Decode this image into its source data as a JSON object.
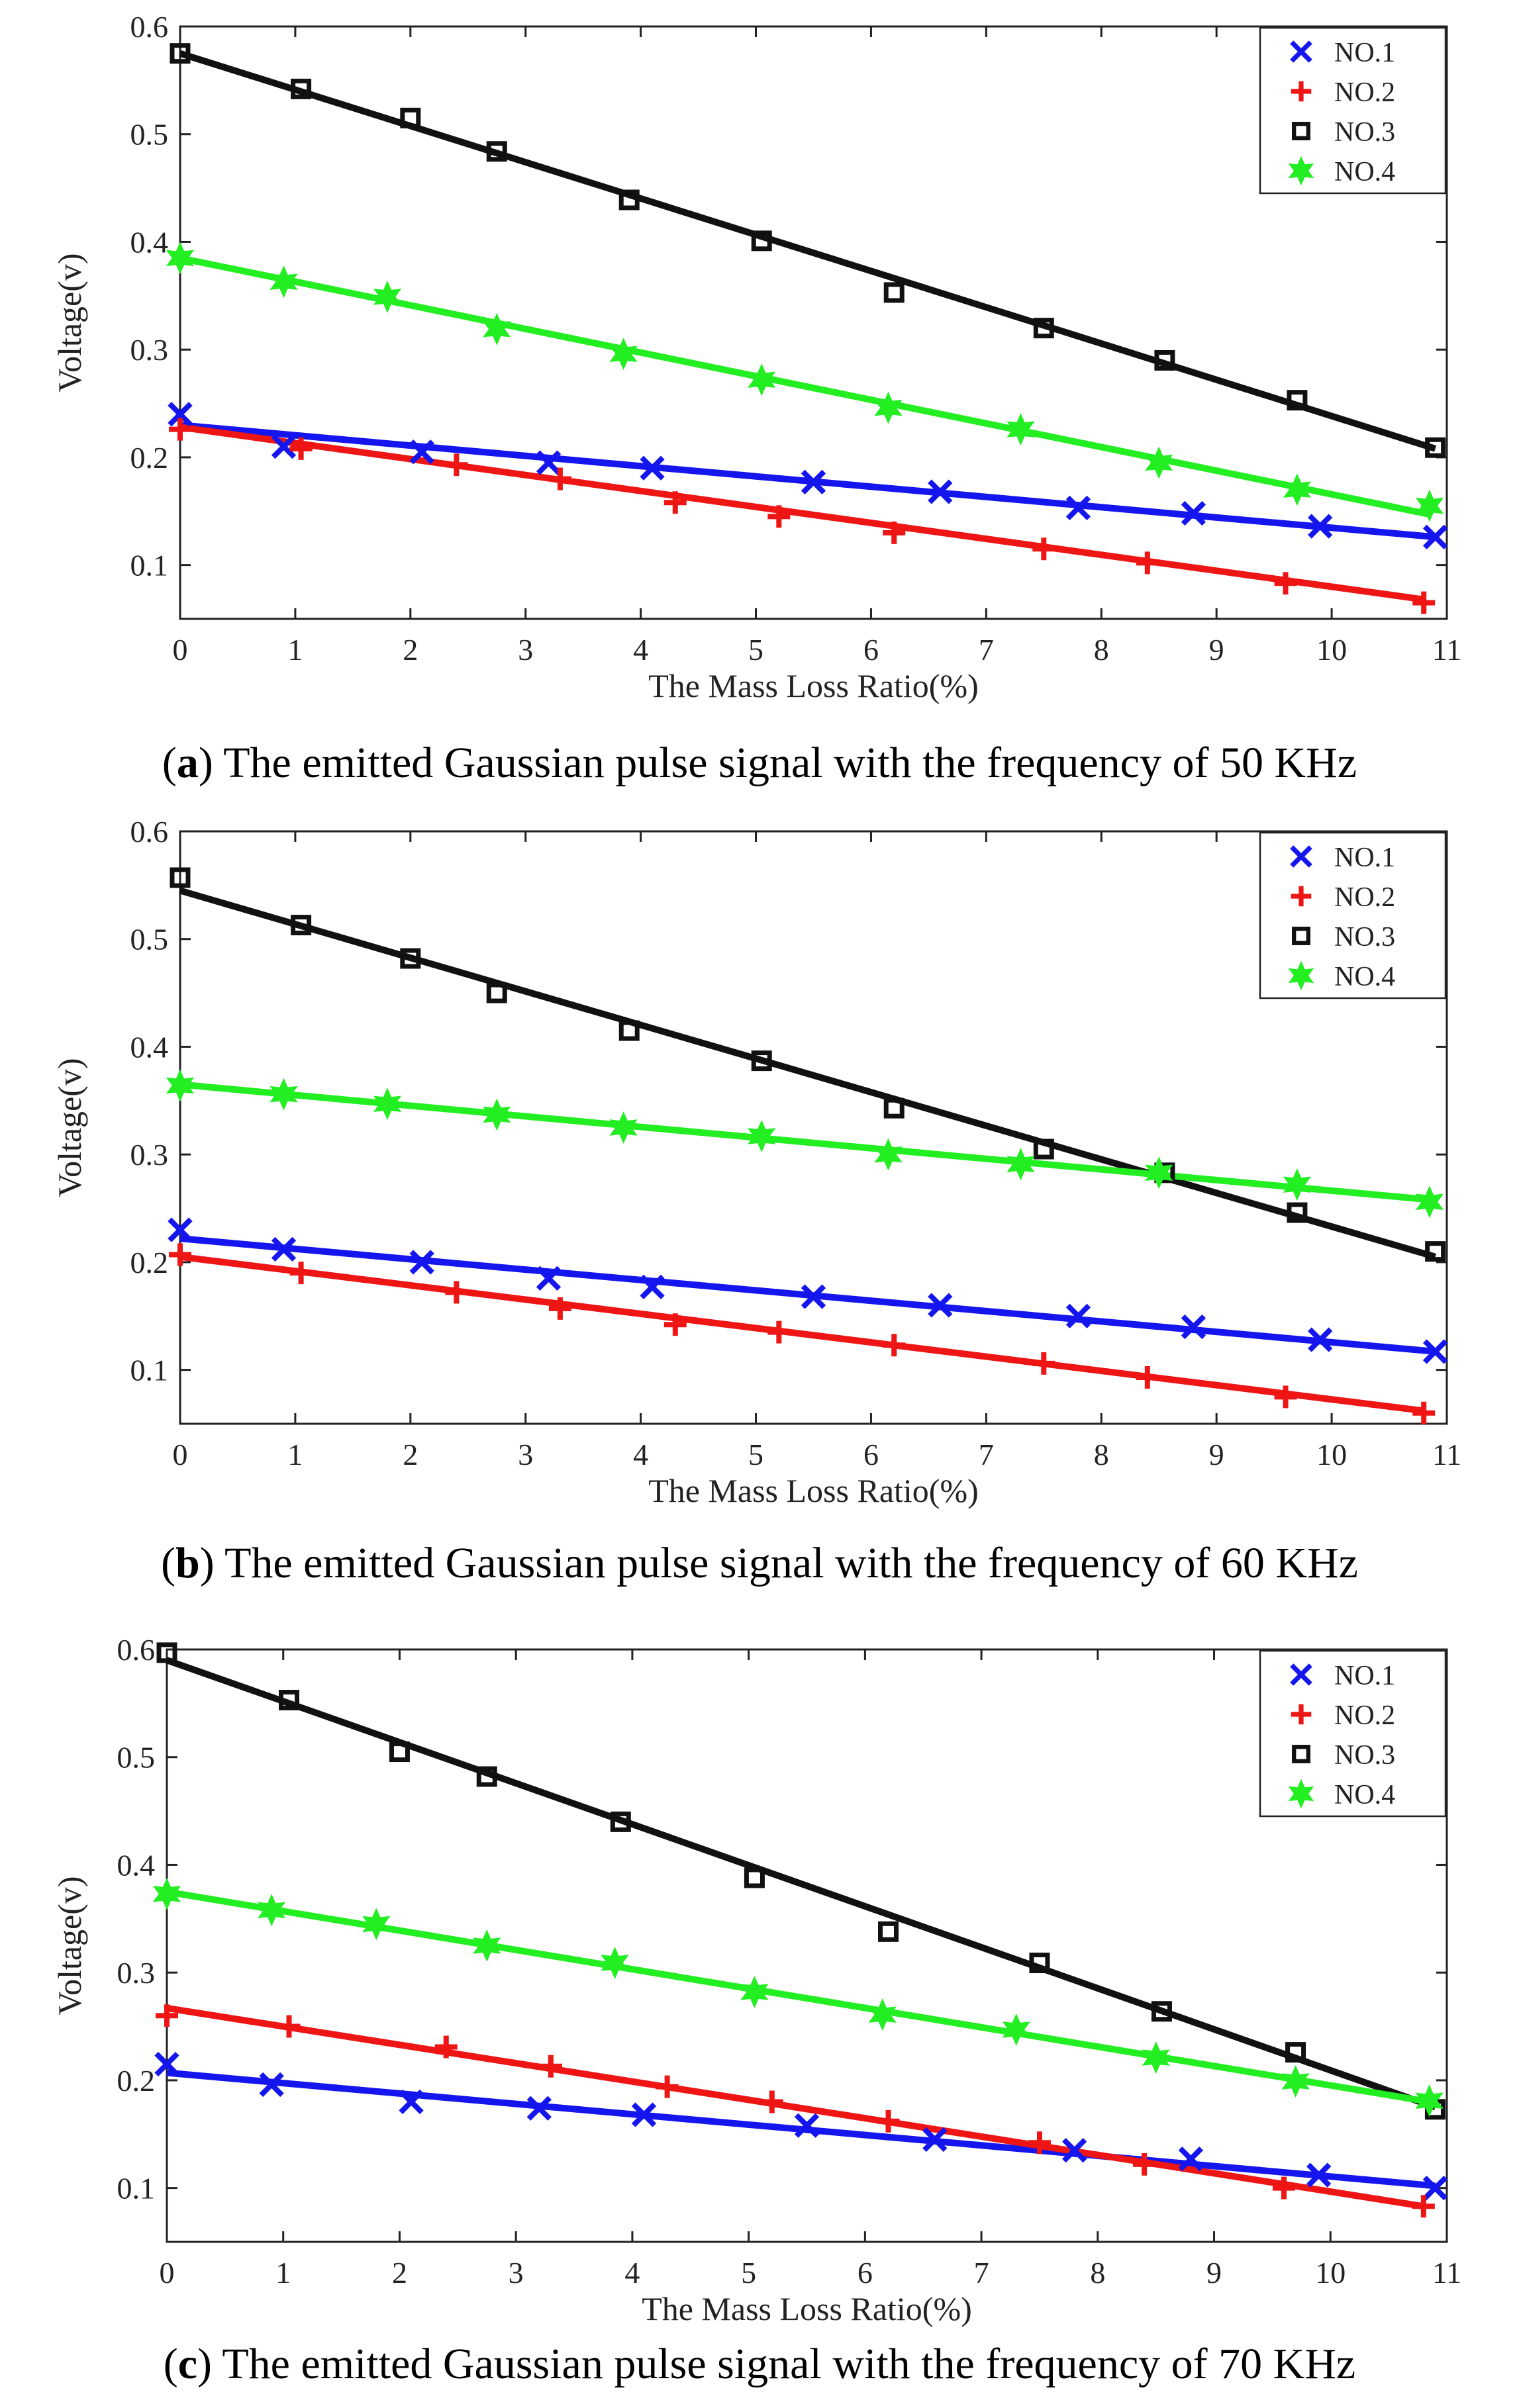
{
  "chart_data": [
    {
      "type": "scatter",
      "caption_tag": "a",
      "caption_text": "The emitted Gaussian pulse signal with the frequency of 50 KHz",
      "xlabel": "The Mass Loss Ratio(%)",
      "ylabel": "Voltage(v)",
      "xlim": [
        0,
        11
      ],
      "ylim": [
        0.05,
        0.6
      ],
      "xticks": [
        "0",
        "1",
        "2",
        "3",
        "4",
        "5",
        "6",
        "7",
        "8",
        "9",
        "10",
        "11"
      ],
      "yticks": [
        "0.1",
        "0.2",
        "0.3",
        "0.4",
        "0.5",
        "0.6"
      ],
      "legend_position": "top-right",
      "series": [
        {
          "name": "NO.1",
          "marker": "x",
          "color": "#1515ee",
          "x": [
            0,
            0.9,
            2.1,
            3.2,
            4.1,
            5.5,
            6.6,
            7.8,
            8.8,
            9.9,
            10.9
          ],
          "y": [
            0.24,
            0.21,
            0.205,
            0.195,
            0.19,
            0.177,
            0.168,
            0.153,
            0.148,
            0.136,
            0.126
          ],
          "fit": [
            [
              0,
              0.23
            ],
            [
              10.9,
              0.126
            ]
          ]
        },
        {
          "name": "NO.2",
          "marker": "plus",
          "color": "#ee1515",
          "x": [
            0,
            1.05,
            2.4,
            3.3,
            4.3,
            5.2,
            6.2,
            7.5,
            8.4,
            9.6,
            10.8
          ],
          "y": [
            0.226,
            0.208,
            0.193,
            0.18,
            0.158,
            0.145,
            0.13,
            0.115,
            0.102,
            0.083,
            0.065
          ],
          "fit": [
            [
              0,
              0.228
            ],
            [
              10.8,
              0.068
            ]
          ]
        },
        {
          "name": "NO.3",
          "marker": "square",
          "color": "#111111",
          "x": [
            0,
            1.05,
            2,
            2.75,
            3.9,
            5.05,
            6.2,
            7.5,
            8.55,
            9.7,
            10.9
          ],
          "y": [
            0.575,
            0.542,
            0.515,
            0.484,
            0.439,
            0.401,
            0.353,
            0.32,
            0.29,
            0.253,
            0.209
          ],
          "fit": [
            [
              0,
              0.575
            ],
            [
              10.9,
              0.208
            ]
          ]
        },
        {
          "name": "NO.4",
          "marker": "star",
          "color": "#22ee22",
          "x": [
            0,
            0.9,
            1.8,
            2.75,
            3.85,
            5.05,
            6.15,
            7.3,
            8.5,
            9.7,
            10.85
          ],
          "y": [
            0.385,
            0.363,
            0.349,
            0.319,
            0.296,
            0.272,
            0.246,
            0.226,
            0.195,
            0.17,
            0.155
          ],
          "fit": [
            [
              0,
              0.385
            ],
            [
              10.85,
              0.147
            ]
          ]
        }
      ]
    },
    {
      "type": "scatter",
      "caption_tag": "b",
      "caption_text": "The emitted Gaussian pulse signal with the frequency of 60 KHz",
      "xlabel": "The Mass Loss Ratio(%)",
      "ylabel": "Voltage(v)",
      "xlim": [
        0,
        11
      ],
      "ylim": [
        0.05,
        0.6
      ],
      "xticks": [
        "0",
        "1",
        "2",
        "3",
        "4",
        "5",
        "6",
        "7",
        "8",
        "9",
        "10",
        "11"
      ],
      "yticks": [
        "0.1",
        "0.2",
        "0.3",
        "0.4",
        "0.5",
        "0.6"
      ],
      "legend_position": "top-right",
      "series": [
        {
          "name": "NO.1",
          "marker": "x",
          "color": "#1515ee",
          "x": [
            0,
            0.9,
            2.1,
            3.2,
            4.1,
            5.5,
            6.6,
            7.8,
            8.8,
            9.9,
            10.9
          ],
          "y": [
            0.23,
            0.212,
            0.2,
            0.185,
            0.177,
            0.168,
            0.16,
            0.15,
            0.14,
            0.128,
            0.117
          ],
          "fit": [
            [
              0,
              0.222
            ],
            [
              10.9,
              0.117
            ]
          ]
        },
        {
          "name": "NO.2",
          "marker": "plus",
          "color": "#ee1515",
          "x": [
            0,
            1.05,
            2.4,
            3.3,
            4.3,
            5.2,
            6.2,
            7.5,
            8.4,
            9.6,
            10.8
          ],
          "y": [
            0.207,
            0.19,
            0.172,
            0.157,
            0.142,
            0.135,
            0.123,
            0.106,
            0.093,
            0.075,
            0.06
          ],
          "fit": [
            [
              0,
              0.205
            ],
            [
              10.8,
              0.062
            ]
          ]
        },
        {
          "name": "NO.3",
          "marker": "square",
          "color": "#111111",
          "x": [
            0,
            1.05,
            2,
            2.75,
            3.9,
            5.05,
            6.2,
            7.5,
            8.55,
            9.7,
            10.9
          ],
          "y": [
            0.557,
            0.513,
            0.482,
            0.45,
            0.415,
            0.387,
            0.343,
            0.305,
            0.283,
            0.246,
            0.21
          ],
          "fit": [
            [
              0,
              0.545
            ],
            [
              10.9,
              0.205
            ]
          ]
        },
        {
          "name": "NO.4",
          "marker": "star",
          "color": "#22ee22",
          "x": [
            0,
            0.9,
            1.8,
            2.75,
            3.85,
            5.05,
            6.15,
            7.3,
            8.5,
            9.7,
            10.85
          ],
          "y": [
            0.364,
            0.356,
            0.347,
            0.337,
            0.325,
            0.317,
            0.3,
            0.291,
            0.283,
            0.272,
            0.256
          ],
          "fit": [
            [
              0,
              0.365
            ],
            [
              10.85,
              0.258
            ]
          ]
        }
      ]
    },
    {
      "type": "scatter",
      "caption_tag": "c",
      "caption_text": "The emitted Gaussian pulse signal with the frequency of 70 KHz",
      "xlabel": "The Mass Loss Ratio(%)",
      "ylabel": "Voltage(v)",
      "xlim": [
        0,
        11
      ],
      "ylim": [
        0.05,
        0.6
      ],
      "xticks": [
        "0",
        "1",
        "2",
        "3",
        "4",
        "5",
        "6",
        "7",
        "8",
        "9",
        "10",
        "11"
      ],
      "yticks": [
        "0.1",
        "0.2",
        "0.3",
        "0.4",
        "0.5",
        "0.6"
      ],
      "legend_position": "top-right",
      "series": [
        {
          "name": "NO.1",
          "marker": "x",
          "color": "#1515ee",
          "x": [
            0,
            0.9,
            2.1,
            3.2,
            4.1,
            5.5,
            6.6,
            7.8,
            8.8,
            9.9,
            10.9
          ],
          "y": [
            0.215,
            0.196,
            0.18,
            0.174,
            0.168,
            0.158,
            0.145,
            0.135,
            0.127,
            0.112,
            0.1
          ],
          "fit": [
            [
              0,
              0.207
            ],
            [
              10.9,
              0.102
            ]
          ]
        },
        {
          "name": "NO.2",
          "marker": "plus",
          "color": "#ee1515",
          "x": [
            0,
            1.05,
            2.4,
            3.3,
            4.3,
            5.2,
            6.2,
            7.5,
            8.4,
            9.6,
            10.8
          ],
          "y": [
            0.26,
            0.25,
            0.231,
            0.213,
            0.194,
            0.18,
            0.162,
            0.142,
            0.122,
            0.1,
            0.083
          ],
          "fit": [
            [
              0,
              0.267
            ],
            [
              10.8,
              0.083
            ]
          ]
        },
        {
          "name": "NO.3",
          "marker": "square",
          "color": "#111111",
          "x": [
            0,
            1.05,
            2,
            2.75,
            3.9,
            5.05,
            6.2,
            7.5,
            8.55,
            9.7,
            10.9
          ],
          "y": [
            0.597,
            0.553,
            0.505,
            0.482,
            0.44,
            0.388,
            0.338,
            0.309,
            0.264,
            0.226,
            0.173
          ],
          "fit": [
            [
              0,
              0.59
            ],
            [
              10.9,
              0.175
            ]
          ]
        },
        {
          "name": "NO.4",
          "marker": "star",
          "color": "#22ee22",
          "x": [
            0,
            0.9,
            1.8,
            2.75,
            3.85,
            5.05,
            6.15,
            7.3,
            8.5,
            9.7,
            10.85
          ],
          "y": [
            0.373,
            0.358,
            0.345,
            0.325,
            0.309,
            0.282,
            0.261,
            0.247,
            0.221,
            0.199,
            0.181
          ],
          "fit": [
            [
              0,
              0.375
            ],
            [
              10.85,
              0.18
            ]
          ]
        }
      ]
    }
  ]
}
